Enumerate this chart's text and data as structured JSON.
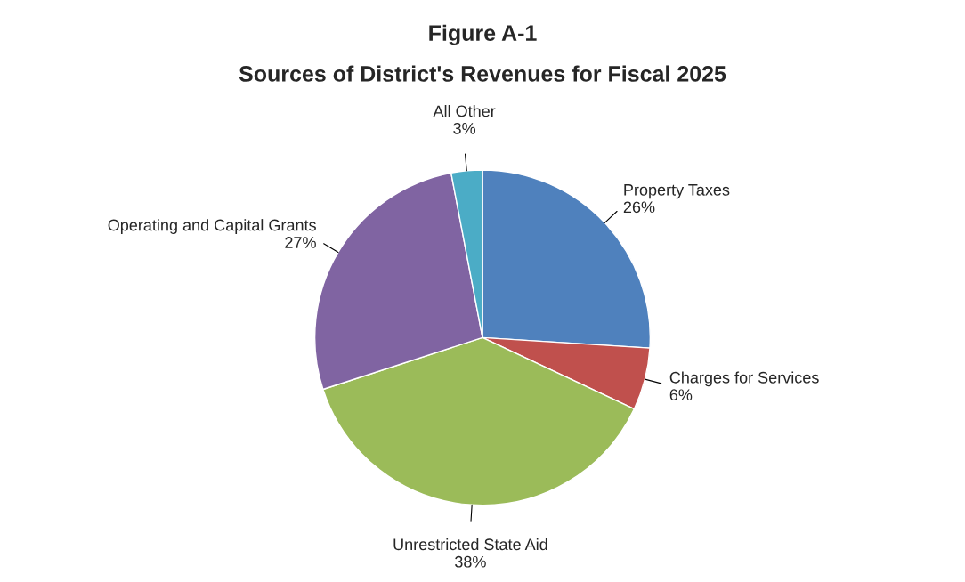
{
  "chart_data": {
    "type": "pie",
    "title": "Figure A-1",
    "subtitle": "Sources of District's Revenues for Fiscal 2025",
    "categories": [
      "Property Taxes",
      "Charges for Services",
      "Unrestricted State Aid",
      "Operating and Capital Grants",
      "All Other"
    ],
    "values": [
      26,
      6,
      38,
      27,
      3
    ],
    "value_labels": [
      "26%",
      "6%",
      "38%",
      "27%",
      "3%"
    ],
    "colors": [
      "#4f81bd",
      "#c0504d",
      "#9bbb59",
      "#8064a2",
      "#4bacc6"
    ]
  }
}
